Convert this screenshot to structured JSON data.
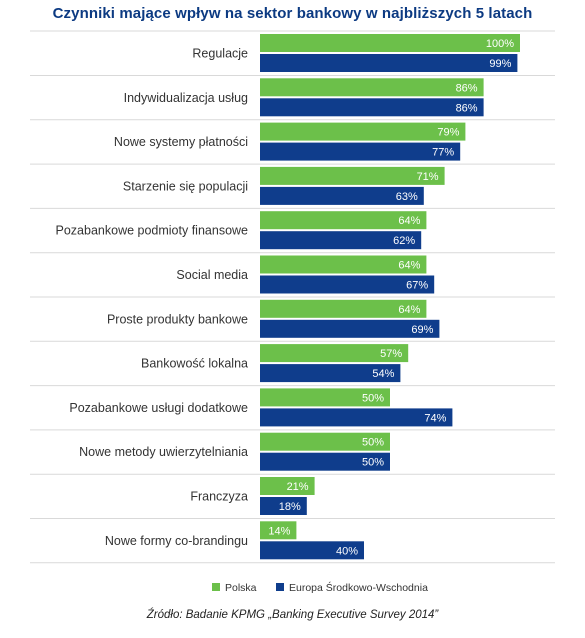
{
  "chart_data": {
    "type": "bar",
    "orientation": "horizontal",
    "title": "Czynniki mające wpływ na sektor bankowy w najbliższych 5 latach",
    "source": "Źródło: Badanie KPMG „Banking Executive Survey 2014”",
    "categories": [
      "Regulacje",
      "Indywidualizacja usług",
      "Nowe systemy płatności",
      "Starzenie się populacji",
      "Pozabankowe podmioty finansowe",
      "Social media",
      "Proste produkty bankowe",
      "Bankowość lokalna",
      "Pozabankowe usługi dodatkowe",
      "Nowe metody uwierzytelniania",
      "Franczyza",
      "Nowe formy co-brandingu"
    ],
    "series": [
      {
        "name": "Polska",
        "color": "#6cc04a",
        "values": [
          100,
          86,
          79,
          71,
          64,
          64,
          64,
          57,
          50,
          50,
          21,
          14
        ],
        "labels": [
          "100%",
          "86%",
          "79%",
          "71%",
          "64%",
          "64%",
          "64%",
          "57%",
          "50%",
          "50%",
          "21%",
          "14%"
        ]
      },
      {
        "name": "Europa Środkowo-Wschodnia",
        "color": "#0f3d8c",
        "values": [
          99,
          86,
          77,
          63,
          62,
          67,
          69,
          54,
          74,
          50,
          18,
          40
        ],
        "labels": [
          "99%",
          "86%",
          "77%",
          "63%",
          "62%",
          "67%",
          "69%",
          "54%",
          "74%",
          "50%",
          "18%",
          "40%"
        ]
      }
    ],
    "xlim": [
      0,
      100
    ],
    "grid": false,
    "legend_position": "bottom"
  }
}
